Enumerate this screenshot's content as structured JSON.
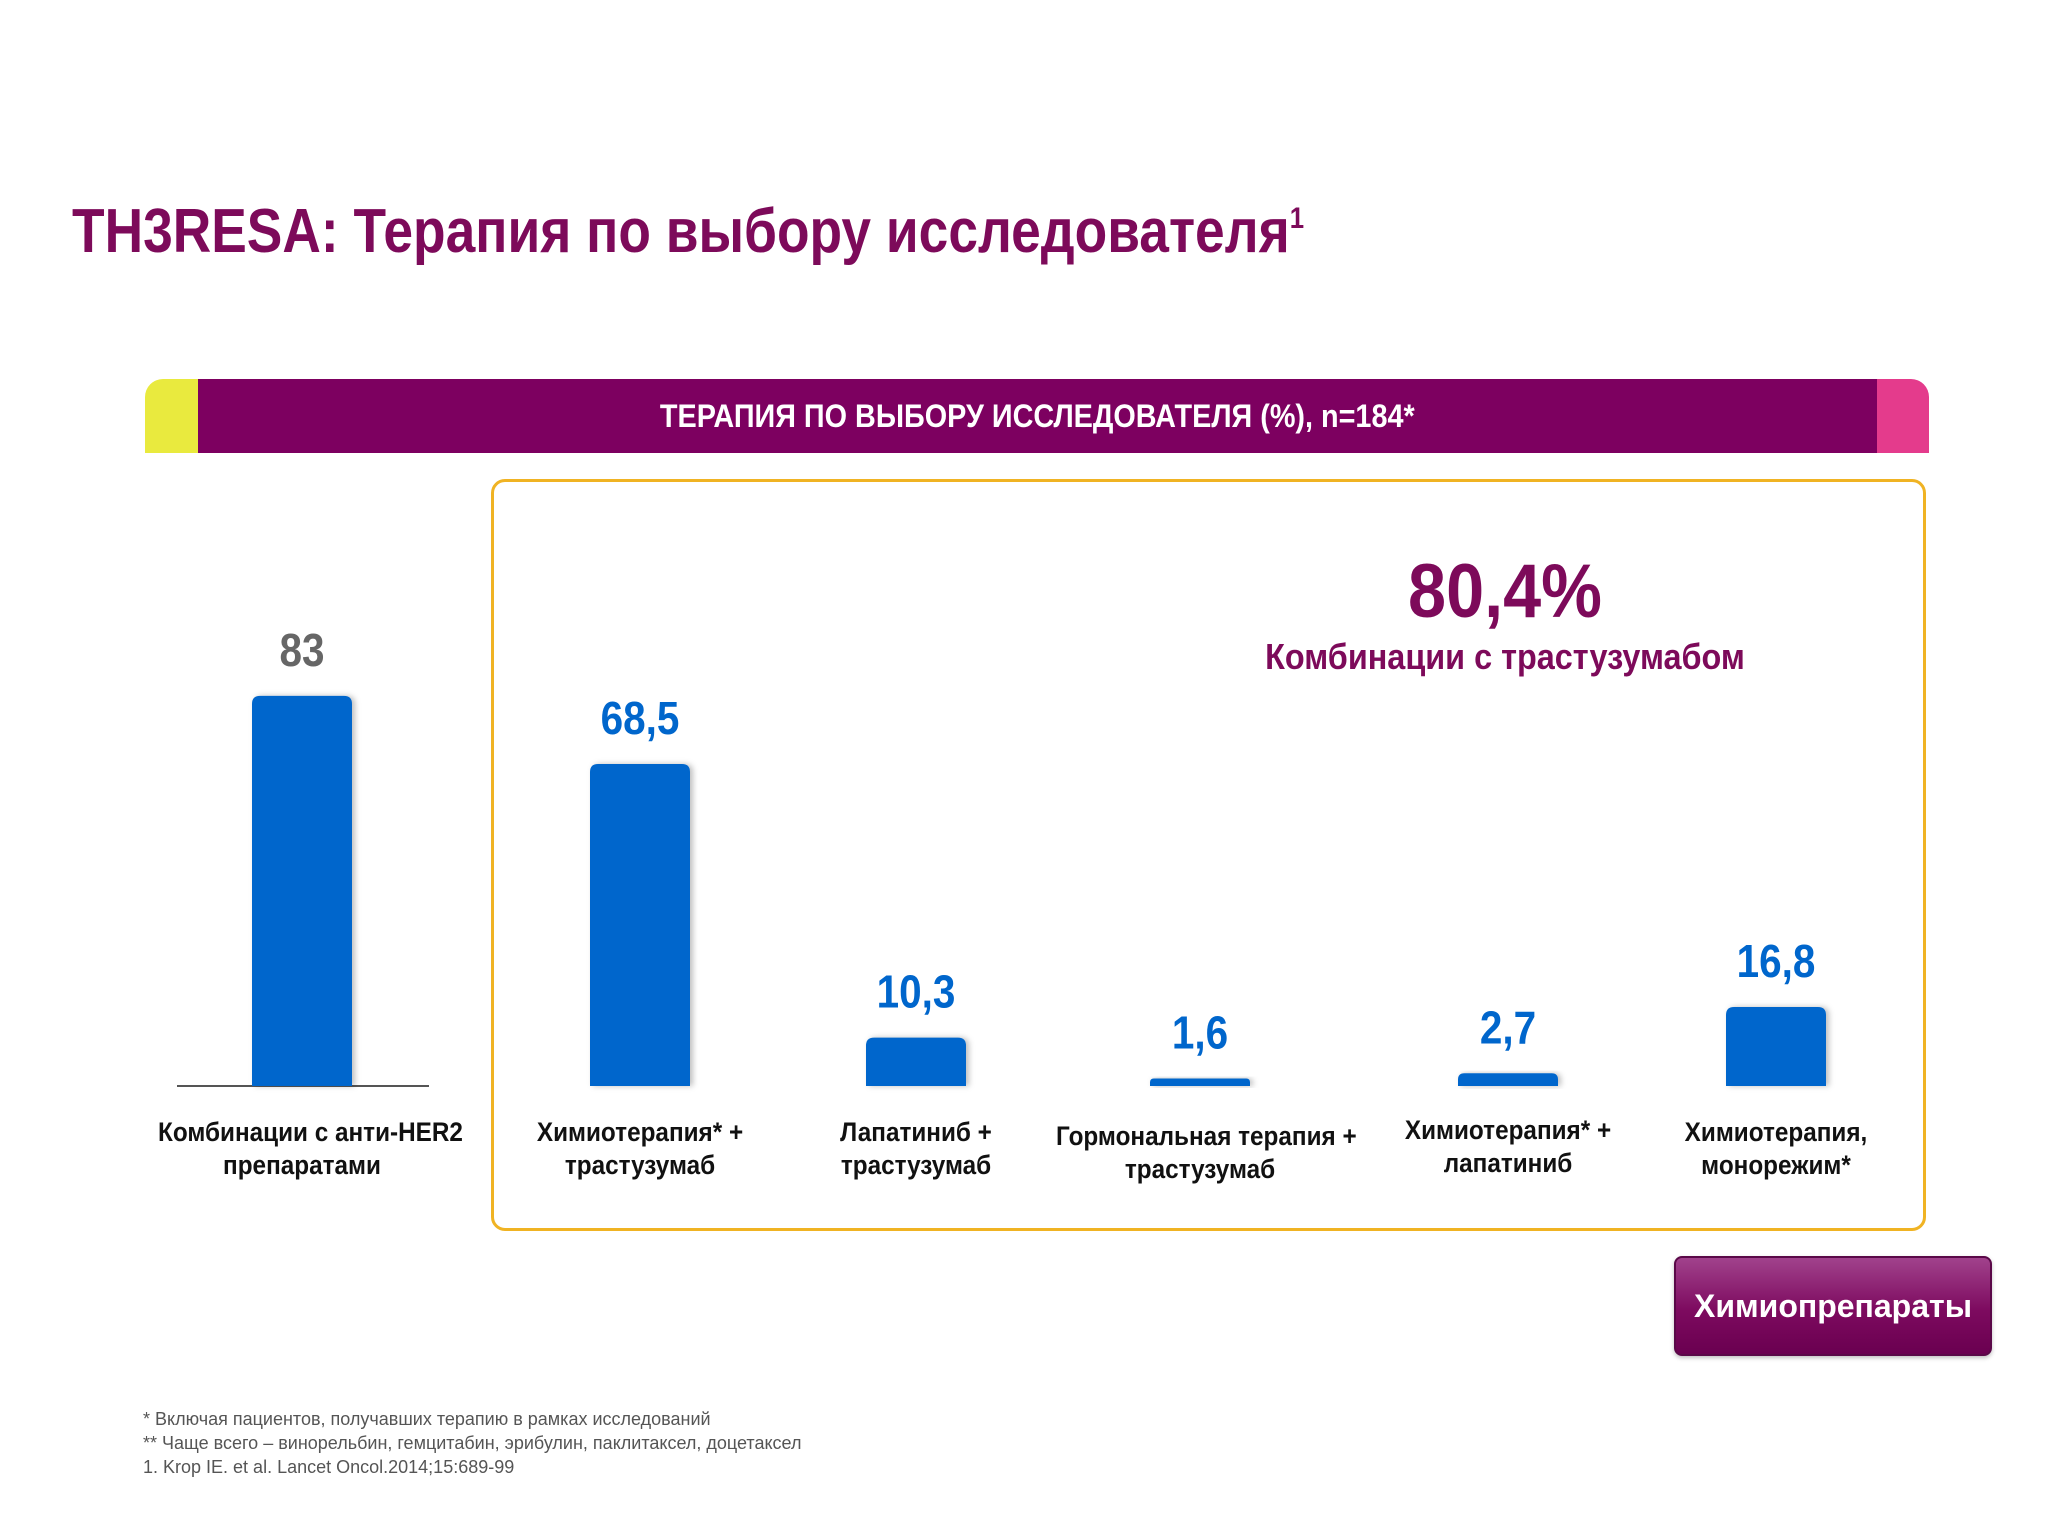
{
  "header": {
    "title": "TH3RESA: Терапия по выбору исследователя",
    "title_sup": "1"
  },
  "banner": {
    "text": "ТЕРАПИЯ ПО ВЫБОРУ ИССЛЕДОВАТЕЛЯ (%), n=184*",
    "colors": {
      "left": "#e9ea3e",
      "middle": "#7d0060",
      "right": "#e43b8c"
    }
  },
  "callout": {
    "value": "80,4%",
    "label": "Комбинации с трастузумабом"
  },
  "chart_data": {
    "type": "bar",
    "categories": [
      [
        "Комбинации с анти-HER2",
        "препаратами"
      ],
      [
        "Химиотерапия* +",
        "трастузумаб"
      ],
      [
        "Лапатиниб +",
        "трастузумаб"
      ],
      [
        "Гормональная терапия +",
        "трастузумаб"
      ],
      [
        "Химиотерапия* +",
        "лапатиниб"
      ],
      [
        "Химиотерапия,",
        "монорежим*"
      ]
    ],
    "values": [
      83,
      68.5,
      10.3,
      1.6,
      2.7,
      16.8
    ],
    "value_labels": [
      "83",
      "68,5",
      "10,3",
      "1,6",
      "2,7",
      "16,8"
    ],
    "value_label_colors": [
      "#666666",
      "#0066cc",
      "#0066cc",
      "#0066cc",
      "#0066cc",
      "#0066cc"
    ],
    "bar_color": "#0066cc",
    "ylim": [
      0,
      100
    ],
    "grid": false,
    "legend": "none"
  },
  "button": {
    "label": "Химиопрепараты"
  },
  "footnotes": [
    "* Включая пациентов, получавших терапию в рамках исследований",
    "** Чаще всего – винорельбин, гемцитабин, эрибулин, паклитаксел, доцетаксел",
    "1. Krop IE. et al. Lancet Oncol.2014;15:689-99"
  ]
}
